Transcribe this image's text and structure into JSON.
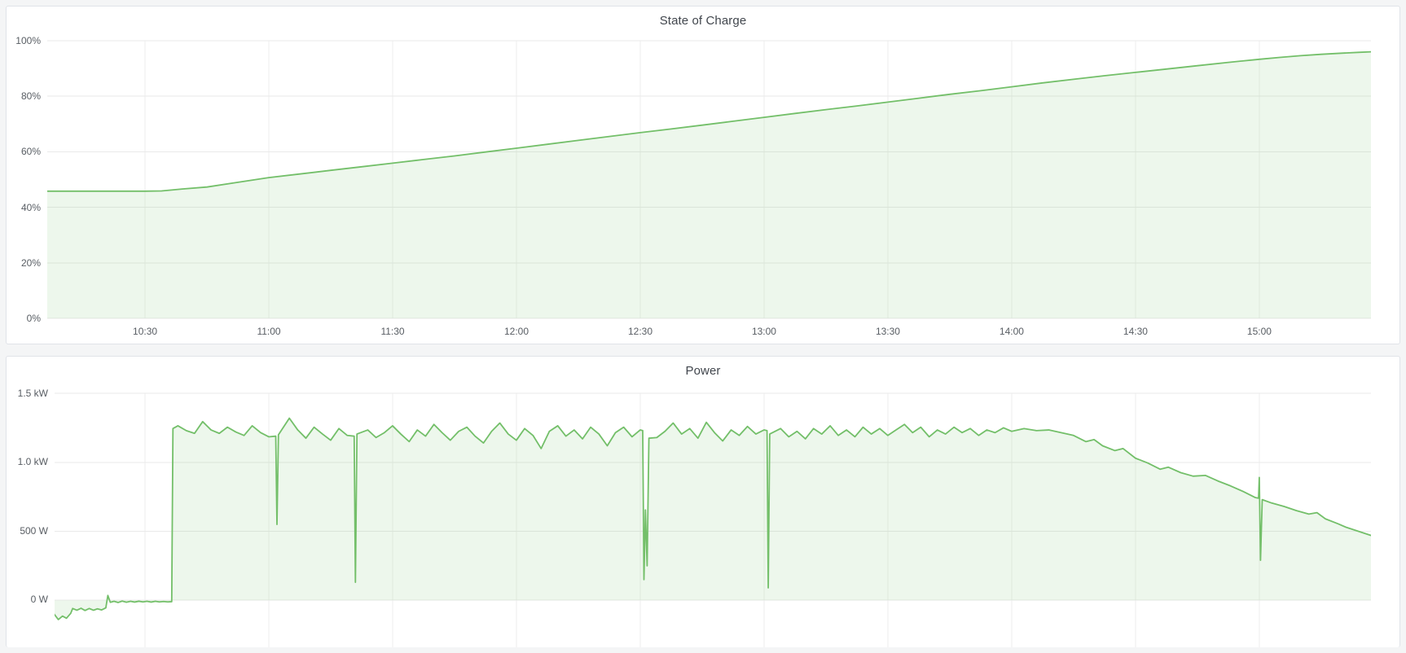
{
  "theme": {
    "page_background": "#f4f5f6",
    "panel_background": "#ffffff",
    "panel_border": "#e0e3e8",
    "grid_color": "#ececec",
    "text_color": "#585d63",
    "title_color": "#41464d",
    "series_green": "#73bf69",
    "series_fill": "rgba(115,191,105,0.13)"
  },
  "panels": [
    {
      "title": "State of Charge"
    },
    {
      "title": "Power"
    }
  ],
  "chart_data": [
    {
      "type": "area",
      "title": "State of Charge",
      "ylabel": "",
      "xlabel": "",
      "x_unit": "hour_of_day_decimal",
      "xlim": [
        10.105,
        15.451
      ],
      "ylim": [
        0,
        100
      ],
      "fill_to": 0,
      "x_labels_visible": true,
      "legend": "none",
      "x_ticks": [
        {
          "t": 10.5,
          "label": "10:30"
        },
        {
          "t": 11.0,
          "label": "11:00"
        },
        {
          "t": 11.5,
          "label": "11:30"
        },
        {
          "t": 12.0,
          "label": "12:00"
        },
        {
          "t": 12.5,
          "label": "12:30"
        },
        {
          "t": 13.0,
          "label": "13:00"
        },
        {
          "t": 13.5,
          "label": "13:30"
        },
        {
          "t": 14.0,
          "label": "14:00"
        },
        {
          "t": 14.5,
          "label": "14:30"
        },
        {
          "t": 15.0,
          "label": "15:00"
        }
      ],
      "y_ticks": [
        {
          "v": 100,
          "label": "100%"
        },
        {
          "v": 80,
          "label": "80%"
        },
        {
          "v": 60,
          "label": "60%"
        },
        {
          "v": 40,
          "label": "40%"
        },
        {
          "v": 20,
          "label": "20%"
        },
        {
          "v": 0,
          "label": "0%"
        }
      ],
      "points": [
        [
          10.1,
          45.8
        ],
        [
          10.25,
          45.8
        ],
        [
          10.4,
          45.8
        ],
        [
          10.5,
          45.8
        ],
        [
          10.567,
          45.9
        ],
        [
          10.65,
          46.6
        ],
        [
          10.75,
          47.3
        ],
        [
          10.875,
          49.0
        ],
        [
          11.0,
          50.7
        ],
        [
          11.125,
          52.0
        ],
        [
          11.25,
          53.3
        ],
        [
          11.375,
          54.6
        ],
        [
          11.5,
          55.9
        ],
        [
          11.625,
          57.2
        ],
        [
          11.75,
          58.5
        ],
        [
          11.875,
          59.9
        ],
        [
          12.0,
          61.3
        ],
        [
          12.125,
          62.7
        ],
        [
          12.25,
          64.1
        ],
        [
          12.375,
          65.5
        ],
        [
          12.5,
          66.9
        ],
        [
          12.625,
          68.2
        ],
        [
          12.75,
          69.6
        ],
        [
          12.875,
          71.0
        ],
        [
          13.0,
          72.4
        ],
        [
          13.125,
          73.8
        ],
        [
          13.25,
          75.2
        ],
        [
          13.375,
          76.5
        ],
        [
          13.5,
          77.9
        ],
        [
          13.625,
          79.3
        ],
        [
          13.75,
          80.7
        ],
        [
          13.875,
          82.0
        ],
        [
          14.0,
          83.4
        ],
        [
          14.125,
          84.8
        ],
        [
          14.25,
          86.1
        ],
        [
          14.375,
          87.4
        ],
        [
          14.5,
          88.6
        ],
        [
          14.625,
          89.8
        ],
        [
          14.75,
          91.0
        ],
        [
          14.875,
          92.2
        ],
        [
          15.0,
          93.3
        ],
        [
          15.083,
          94.0
        ],
        [
          15.167,
          94.6
        ],
        [
          15.25,
          95.1
        ],
        [
          15.333,
          95.5
        ],
        [
          15.4,
          95.8
        ],
        [
          15.451,
          96.0
        ]
      ]
    },
    {
      "type": "area",
      "title": "Power",
      "ylabel": "",
      "xlabel": "",
      "x_unit": "hour_of_day_decimal",
      "y_unit": "watts",
      "xlim": [
        10.135,
        15.451
      ],
      "ylim": [
        -341,
        1500
      ],
      "fill_to": 0,
      "x_labels_visible": false,
      "legend": "none",
      "x_ticks": [
        {
          "t": 10.5,
          "label": "10:30"
        },
        {
          "t": 11.0,
          "label": "11:00"
        },
        {
          "t": 11.5,
          "label": "11:30"
        },
        {
          "t": 12.0,
          "label": "12:00"
        },
        {
          "t": 12.5,
          "label": "12:30"
        },
        {
          "t": 13.0,
          "label": "13:00"
        },
        {
          "t": 13.5,
          "label": "13:30"
        },
        {
          "t": 14.0,
          "label": "14:00"
        },
        {
          "t": 14.5,
          "label": "14:30"
        },
        {
          "t": 15.0,
          "label": "15:00"
        }
      ],
      "y_ticks": [
        {
          "v": 1500,
          "label": "1.5 kW"
        },
        {
          "v": 1000,
          "label": "1.0 kW"
        },
        {
          "v": 500,
          "label": "500 W"
        },
        {
          "v": 0,
          "label": "0 W"
        }
      ],
      "points": [
        [
          10.1,
          -95
        ],
        [
          10.117,
          -120
        ],
        [
          10.133,
          -100
        ],
        [
          10.15,
          -140
        ],
        [
          10.167,
          -115
        ],
        [
          10.183,
          -130
        ],
        [
          10.2,
          -95
        ],
        [
          10.208,
          -60
        ],
        [
          10.225,
          -72
        ],
        [
          10.242,
          -58
        ],
        [
          10.258,
          -74
        ],
        [
          10.275,
          -60
        ],
        [
          10.292,
          -72
        ],
        [
          10.308,
          -62
        ],
        [
          10.325,
          -70
        ],
        [
          10.342,
          -55
        ],
        [
          10.35,
          35
        ],
        [
          10.36,
          -15
        ],
        [
          10.375,
          -8
        ],
        [
          10.392,
          -16
        ],
        [
          10.408,
          -6
        ],
        [
          10.425,
          -14
        ],
        [
          10.442,
          -8
        ],
        [
          10.458,
          -13
        ],
        [
          10.475,
          -7
        ],
        [
          10.492,
          -12
        ],
        [
          10.508,
          -8
        ],
        [
          10.525,
          -13
        ],
        [
          10.542,
          -8
        ],
        [
          10.558,
          -12
        ],
        [
          10.575,
          -9
        ],
        [
          10.592,
          -12
        ],
        [
          10.608,
          -10
        ],
        [
          10.613,
          1245
        ],
        [
          10.633,
          1265
        ],
        [
          10.667,
          1230
        ],
        [
          10.7,
          1210
        ],
        [
          10.733,
          1295
        ],
        [
          10.767,
          1235
        ],
        [
          10.8,
          1210
        ],
        [
          10.833,
          1255
        ],
        [
          10.867,
          1220
        ],
        [
          10.9,
          1195
        ],
        [
          10.933,
          1265
        ],
        [
          10.967,
          1215
        ],
        [
          11.0,
          1185
        ],
        [
          11.028,
          1190
        ],
        [
          11.033,
          550
        ],
        [
          11.039,
          1200
        ],
        [
          11.083,
          1320
        ],
        [
          11.117,
          1235
        ],
        [
          11.15,
          1175
        ],
        [
          11.183,
          1255
        ],
        [
          11.217,
          1205
        ],
        [
          11.25,
          1160
        ],
        [
          11.283,
          1245
        ],
        [
          11.317,
          1195
        ],
        [
          11.345,
          1190
        ],
        [
          11.35,
          130
        ],
        [
          11.356,
          1205
        ],
        [
          11.4,
          1235
        ],
        [
          11.433,
          1180
        ],
        [
          11.467,
          1215
        ],
        [
          11.5,
          1265
        ],
        [
          11.533,
          1205
        ],
        [
          11.567,
          1150
        ],
        [
          11.6,
          1235
        ],
        [
          11.633,
          1190
        ],
        [
          11.667,
          1275
        ],
        [
          11.7,
          1215
        ],
        [
          11.733,
          1160
        ],
        [
          11.767,
          1225
        ],
        [
          11.8,
          1255
        ],
        [
          11.833,
          1190
        ],
        [
          11.867,
          1140
        ],
        [
          11.9,
          1225
        ],
        [
          11.933,
          1285
        ],
        [
          11.967,
          1205
        ],
        [
          12.0,
          1160
        ],
        [
          12.033,
          1245
        ],
        [
          12.067,
          1195
        ],
        [
          12.1,
          1100
        ],
        [
          12.133,
          1225
        ],
        [
          12.167,
          1265
        ],
        [
          12.2,
          1190
        ],
        [
          12.233,
          1235
        ],
        [
          12.267,
          1170
        ],
        [
          12.3,
          1255
        ],
        [
          12.333,
          1205
        ],
        [
          12.367,
          1120
        ],
        [
          12.4,
          1215
        ],
        [
          12.433,
          1255
        ],
        [
          12.467,
          1185
        ],
        [
          12.5,
          1235
        ],
        [
          12.51,
          1230
        ],
        [
          12.515,
          150
        ],
        [
          12.521,
          655
        ],
        [
          12.528,
          250
        ],
        [
          12.535,
          1175
        ],
        [
          12.567,
          1180
        ],
        [
          12.6,
          1225
        ],
        [
          12.633,
          1285
        ],
        [
          12.667,
          1205
        ],
        [
          12.7,
          1245
        ],
        [
          12.733,
          1175
        ],
        [
          12.767,
          1290
        ],
        [
          12.8,
          1215
        ],
        [
          12.833,
          1155
        ],
        [
          12.867,
          1235
        ],
        [
          12.9,
          1195
        ],
        [
          12.933,
          1260
        ],
        [
          12.967,
          1205
        ],
        [
          13.0,
          1235
        ],
        [
          13.012,
          1230
        ],
        [
          13.017,
          90
        ],
        [
          13.023,
          1205
        ],
        [
          13.067,
          1245
        ],
        [
          13.1,
          1185
        ],
        [
          13.133,
          1225
        ],
        [
          13.167,
          1170
        ],
        [
          13.2,
          1245
        ],
        [
          13.233,
          1205
        ],
        [
          13.267,
          1265
        ],
        [
          13.3,
          1195
        ],
        [
          13.333,
          1235
        ],
        [
          13.367,
          1185
        ],
        [
          13.4,
          1255
        ],
        [
          13.433,
          1205
        ],
        [
          13.467,
          1245
        ],
        [
          13.5,
          1195
        ],
        [
          13.533,
          1235
        ],
        [
          13.567,
          1275
        ],
        [
          13.6,
          1215
        ],
        [
          13.633,
          1255
        ],
        [
          13.667,
          1185
        ],
        [
          13.7,
          1235
        ],
        [
          13.733,
          1205
        ],
        [
          13.767,
          1255
        ],
        [
          13.8,
          1215
        ],
        [
          13.833,
          1245
        ],
        [
          13.867,
          1195
        ],
        [
          13.9,
          1235
        ],
        [
          13.933,
          1215
        ],
        [
          13.967,
          1250
        ],
        [
          14.0,
          1225
        ],
        [
          14.05,
          1245
        ],
        [
          14.1,
          1230
        ],
        [
          14.15,
          1235
        ],
        [
          14.2,
          1215
        ],
        [
          14.25,
          1195
        ],
        [
          14.3,
          1150
        ],
        [
          14.333,
          1165
        ],
        [
          14.367,
          1120
        ],
        [
          14.417,
          1085
        ],
        [
          14.45,
          1100
        ],
        [
          14.5,
          1030
        ],
        [
          14.55,
          995
        ],
        [
          14.6,
          950
        ],
        [
          14.633,
          965
        ],
        [
          14.683,
          925
        ],
        [
          14.733,
          900
        ],
        [
          14.783,
          905
        ],
        [
          14.833,
          865
        ],
        [
          14.883,
          830
        ],
        [
          14.933,
          790
        ],
        [
          14.983,
          745
        ],
        [
          14.997,
          740
        ],
        [
          15.0,
          890
        ],
        [
          15.005,
          290
        ],
        [
          15.012,
          730
        ],
        [
          15.05,
          705
        ],
        [
          15.1,
          680
        ],
        [
          15.15,
          650
        ],
        [
          15.2,
          625
        ],
        [
          15.233,
          635
        ],
        [
          15.267,
          590
        ],
        [
          15.317,
          555
        ],
        [
          15.35,
          530
        ],
        [
          15.4,
          500
        ],
        [
          15.451,
          470
        ]
      ]
    }
  ]
}
